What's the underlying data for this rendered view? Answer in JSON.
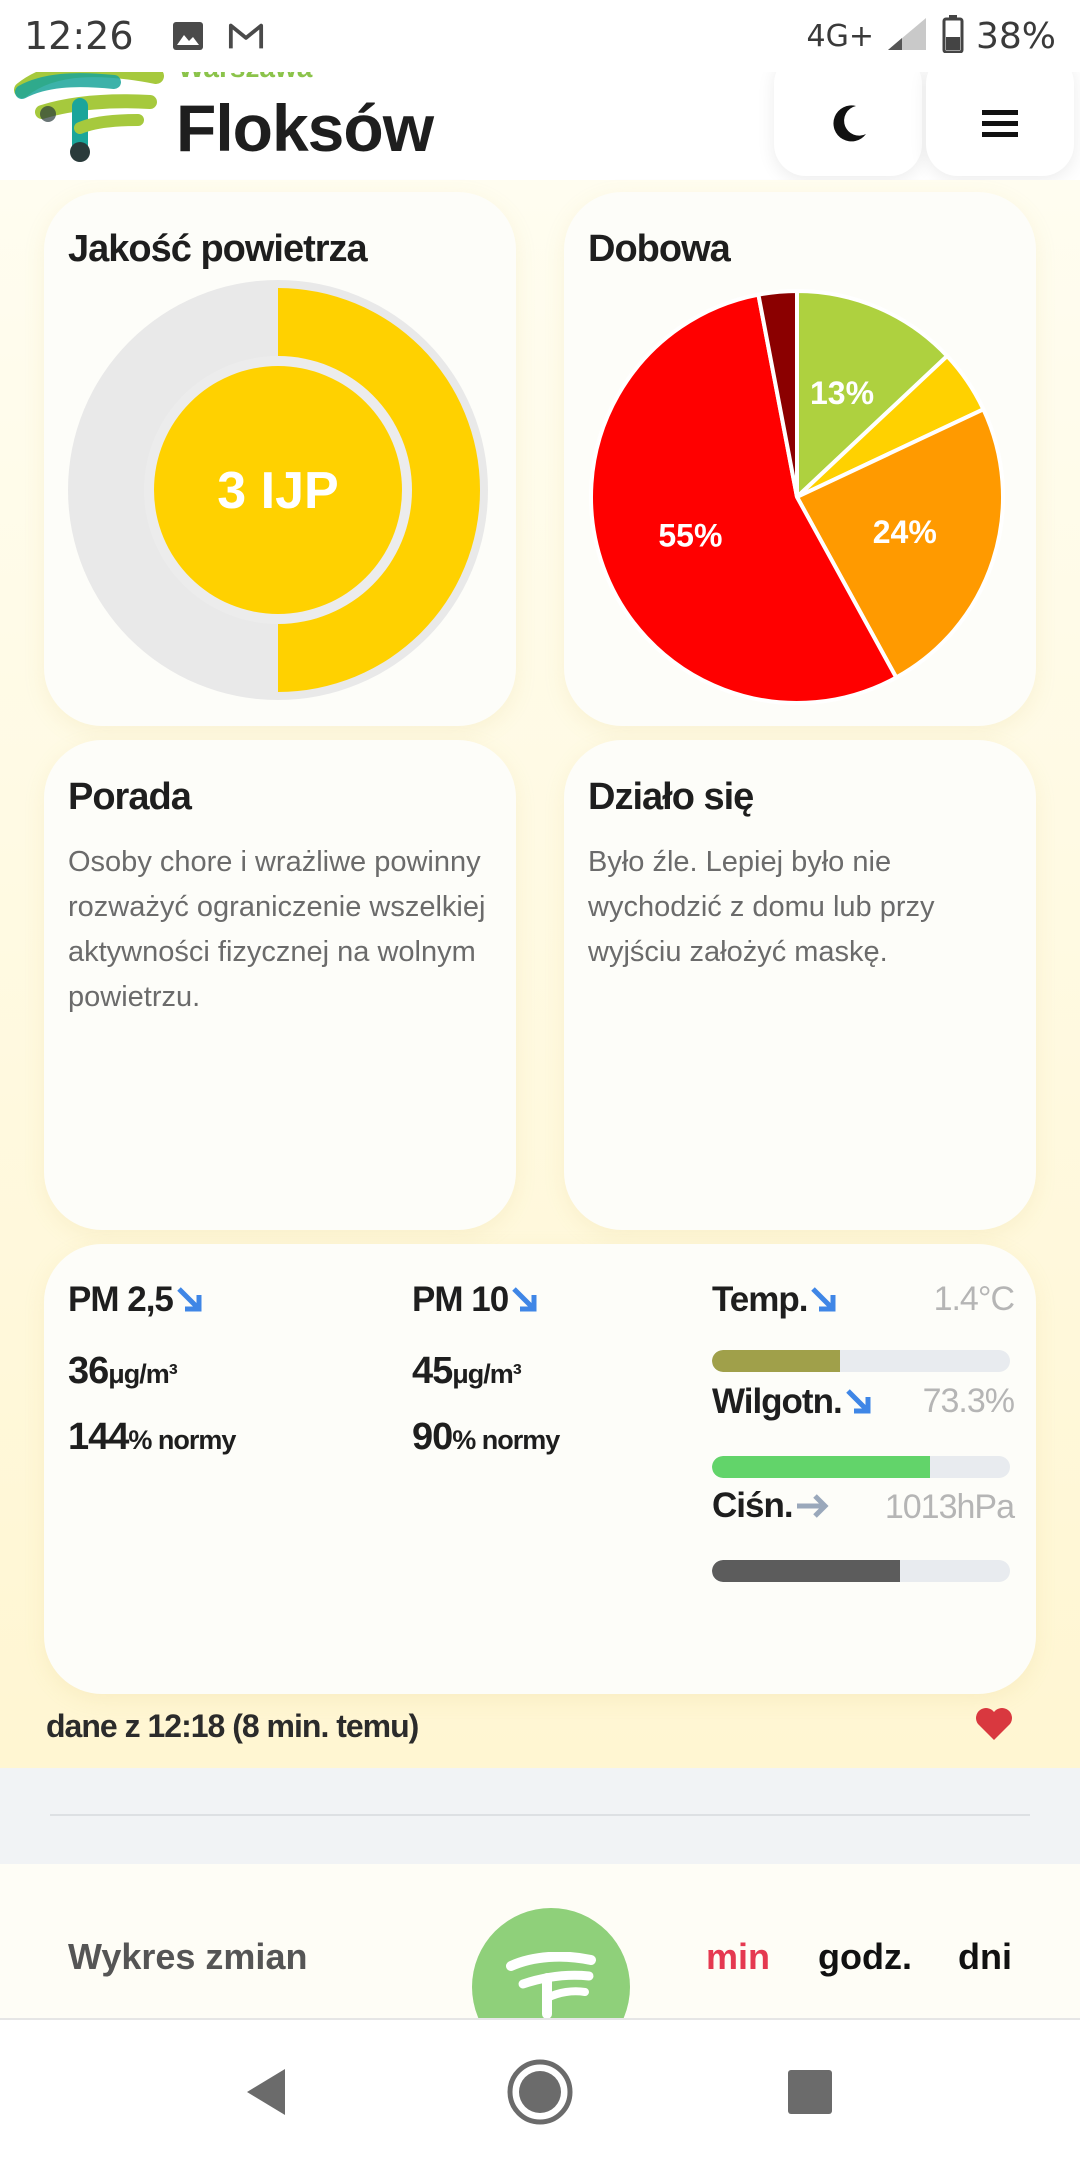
{
  "status_bar": {
    "time": "12:26",
    "network": "4G+",
    "battery": "38%",
    "icons": [
      "image-icon",
      "gmail-icon",
      "signal-icon",
      "battery-icon"
    ]
  },
  "header": {
    "city": "Warszawa",
    "district": "Floksów",
    "theme_icon": "moon-icon",
    "menu_icon": "hamburger-menu-icon"
  },
  "air_quality": {
    "title": "Jakość powietrza",
    "index_label": "3 IJP",
    "color": "#ffd100",
    "level": 0.5
  },
  "daily": {
    "title": "Dobowa",
    "chart_data": {
      "type": "pie",
      "values": [
        13,
        5,
        24,
        55,
        3
      ],
      "colors": [
        "#aed13f",
        "#ffd100",
        "#ff9a00",
        "#ff0000",
        "#8b0000"
      ],
      "labels": [
        "13%",
        "",
        "24%",
        "55%",
        ""
      ]
    }
  },
  "advice": {
    "title": "Porada",
    "text": "Osoby chore i wrażliwe powinny rozważyć ograniczenie wszelkiej aktywności fizycznej na wolnym powietrzu."
  },
  "happened": {
    "title": "Działo się",
    "text": "Było źle. Lepiej było nie wychodzić z domu lub przy wyjściu założyć maskę."
  },
  "measurements": {
    "pm25": {
      "label": "PM 2,5",
      "value": "36",
      "unit": "μg/m³",
      "norm": "144",
      "norm_unit": "% normy",
      "trend": "down"
    },
    "pm10": {
      "label": "PM 10",
      "value": "45",
      "unit": "μg/m³",
      "norm": "90",
      "norm_unit": "% normy",
      "trend": "down"
    },
    "temperature": {
      "label": "Temp.",
      "value": "1.4°C",
      "level": 0.43,
      "color": "#a0a04a",
      "trend": "down"
    },
    "humidity": {
      "label": "Wilgotn.",
      "value": "73.3%",
      "level": 0.73,
      "color": "#62d46a",
      "trend": "down"
    },
    "pressure": {
      "label": "Ciśn.",
      "value": "1013hPa",
      "level": 0.63,
      "color": "#5c5c5c",
      "trend": "steady"
    }
  },
  "data_timestamp": "dane z 12:18 (8 min. temu)",
  "favorite_icon": "heart-icon",
  "chart_section": {
    "title": "Wykres zmian",
    "ranges": [
      "min",
      "godz.",
      "dni"
    ],
    "active_range": "min",
    "active_color": "#e53950"
  },
  "nav": [
    "back-icon",
    "home-icon",
    "recents-icon"
  ]
}
